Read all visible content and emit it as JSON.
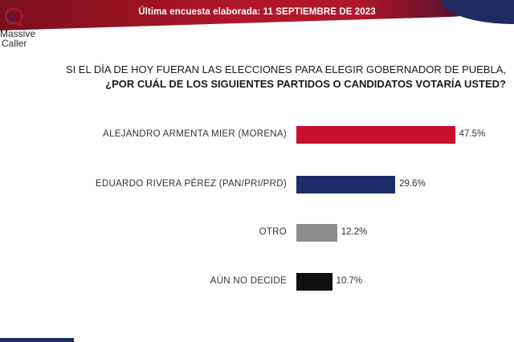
{
  "header": {
    "text": "Última encuesta elaborada: 11 SEPTIEMBRE  DE 2023"
  },
  "logo": {
    "line1": "Massive",
    "line2": "Caller"
  },
  "question": {
    "line1": "SI EL DÍA DE HOY FUERAN LAS ELECCIONES PARA ELEGIR GOBERNADOR DE PUEBLA,",
    "line2": "¿POR CUÁL DE LOS SIGUIENTES PARTIDOS O CANDIDATOS VOTARÍA USTED?"
  },
  "chart_data": {
    "type": "bar",
    "orientation": "horizontal",
    "categories": [
      "ALEJANDRO ARMENTA MIER (MORENA)",
      "EDUARDO RIVERA PÉREZ (PAN/PRI/PRD)",
      "OTRO",
      "AÚN NO DECIDE"
    ],
    "values": [
      47.5,
      29.6,
      12.2,
      10.7
    ],
    "value_labels": [
      "47.5%",
      "29.6%",
      "12.2%",
      "10.7%"
    ],
    "colors": [
      "#c8102e",
      "#1d2b6b",
      "#8c8c8c",
      "#111111"
    ],
    "xlim": [
      0,
      50
    ],
    "grid": false
  }
}
